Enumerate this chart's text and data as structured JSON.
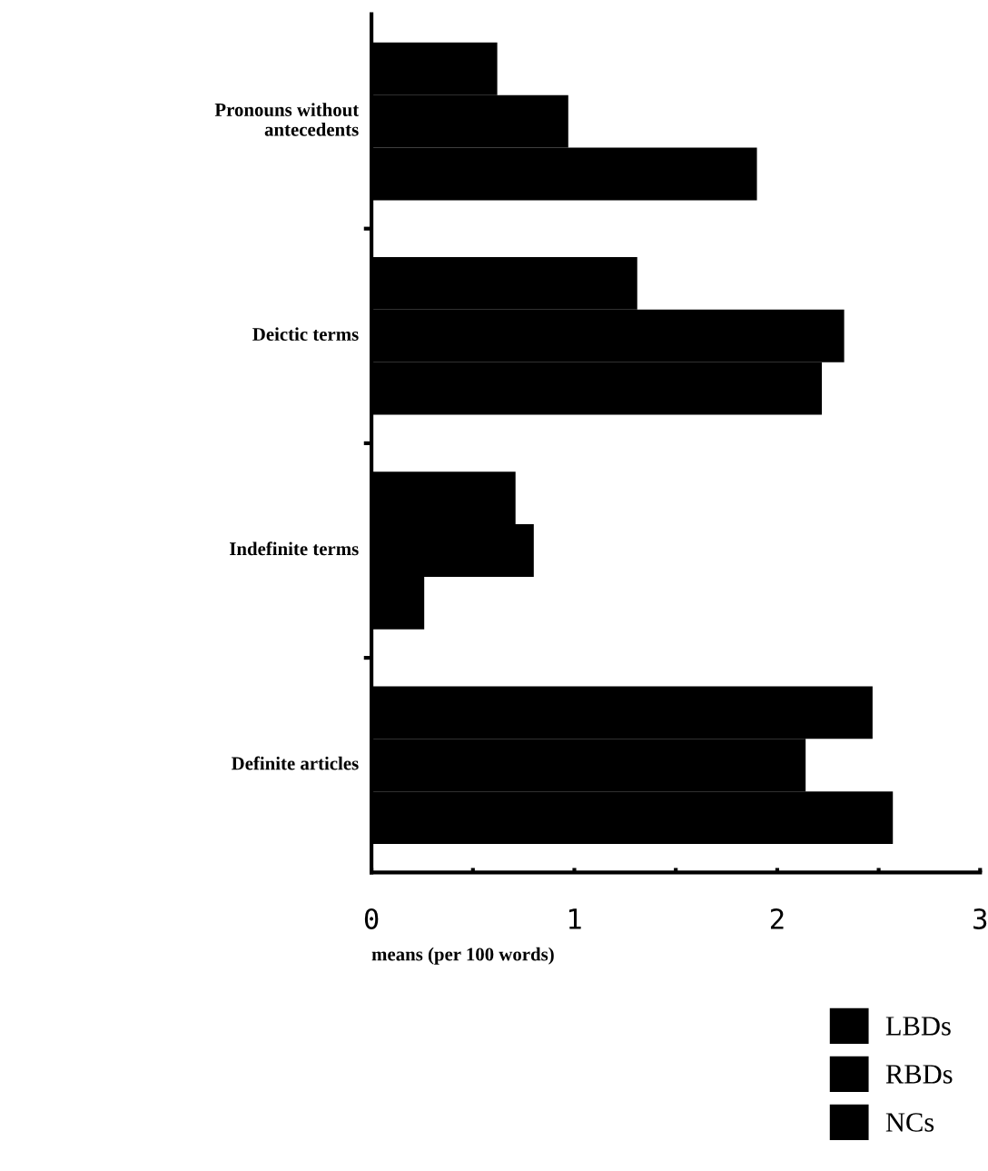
{
  "chart_data": {
    "type": "bar",
    "orientation": "horizontal",
    "categories": [
      "Pronouns without\nantecedents",
      "Deictic terms",
      "Indefinite terms",
      "Definite articles"
    ],
    "series": [
      {
        "name": "LBDs",
        "color": "#000000",
        "values": [
          0.62,
          1.31,
          0.71,
          2.47
        ]
      },
      {
        "name": "RBDs",
        "color": "#000000",
        "values": [
          0.97,
          2.33,
          0.8,
          2.14
        ]
      },
      {
        "name": "NCs",
        "color": "#000000",
        "values": [
          1.9,
          2.22,
          0.26,
          2.57
        ]
      }
    ],
    "xlabel": "means (per 100 words)",
    "xlim": [
      0,
      3
    ],
    "xticks": [
      0,
      {
        "value": 0.5,
        "label": null
      },
      1,
      {
        "value": 1.5,
        "label": null
      },
      2,
      {
        "value": 2.5,
        "label": null
      },
      3
    ],
    "grid": false,
    "legend": "bottom right"
  }
}
